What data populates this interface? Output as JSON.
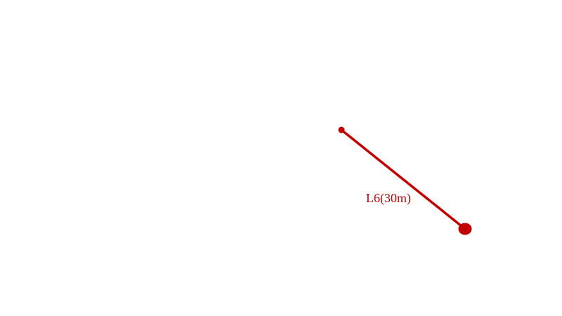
{
  "diagram": {
    "segment_label": "L6(30m)",
    "color": "#c00000"
  }
}
